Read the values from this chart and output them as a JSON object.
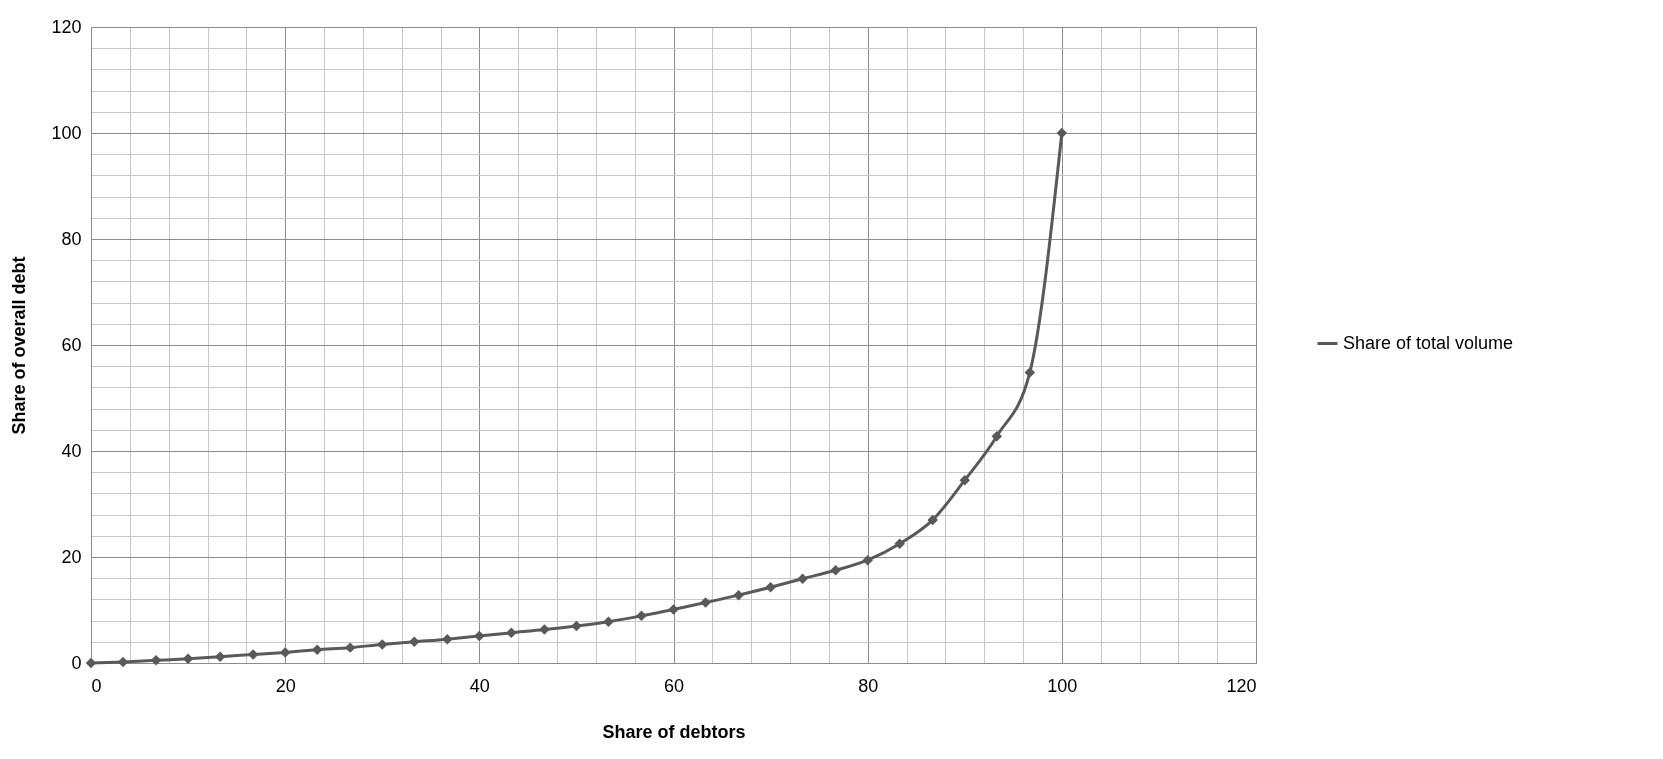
{
  "chart_data": {
    "type": "line",
    "xlabel": "Share of debtors",
    "ylabel": "Share of overall debt",
    "x": [
      0,
      3.3,
      6.7,
      10,
      13.3,
      16.7,
      20,
      23.3,
      26.7,
      30,
      33.3,
      36.7,
      40,
      43.3,
      46.7,
      50,
      53.3,
      56.7,
      60,
      63.3,
      66.7,
      70,
      73.3,
      76.7,
      80,
      83.3,
      86.7,
      90,
      93.3,
      96.7,
      100
    ],
    "series": [
      {
        "name": "Share of total volume",
        "color": "#595959",
        "values": [
          0,
          0.2,
          0.5,
          0.8,
          1.2,
          1.6,
          2.0,
          2.5,
          2.9,
          3.5,
          4.0,
          4.5,
          5.1,
          5.7,
          6.3,
          7.0,
          7.8,
          8.9,
          10.1,
          11.4,
          12.8,
          14.3,
          15.9,
          17.5,
          19.4,
          22.5,
          27,
          34.5,
          42.8,
          54.8,
          100
        ]
      }
    ],
    "xlim": [
      0,
      120
    ],
    "ylim": [
      0,
      120
    ],
    "xticks": [
      0,
      {
        "value": 4,
        "label": null
      },
      {
        "value": 8,
        "label": null
      },
      {
        "value": 12,
        "label": null
      },
      {
        "value": 16,
        "label": null
      },
      20,
      {
        "value": 24,
        "label": null
      },
      {
        "value": 28,
        "label": null
      },
      {
        "value": 32,
        "label": null
      },
      {
        "value": 36,
        "label": null
      },
      40,
      {
        "value": 44,
        "label": null
      },
      {
        "value": 48,
        "label": null
      },
      {
        "value": 52,
        "label": null
      },
      {
        "value": 56,
        "label": null
      },
      60,
      {
        "value": 64,
        "label": null
      },
      {
        "value": 68,
        "label": null
      },
      {
        "value": 72,
        "label": null
      },
      {
        "value": 76,
        "label": null
      },
      80,
      {
        "value": 84,
        "label": null
      },
      {
        "value": 88,
        "label": null
      },
      {
        "value": 92,
        "label": null
      },
      {
        "value": 96,
        "label": null
      },
      100,
      {
        "value": 104,
        "label": null
      },
      {
        "value": 108,
        "label": null
      },
      {
        "value": 112,
        "label": null
      },
      {
        "value": 116,
        "label": null
      },
      120
    ],
    "yticks": [
      0,
      {
        "value": 4,
        "label": null
      },
      {
        "value": 8,
        "label": null
      },
      {
        "value": 12,
        "label": null
      },
      {
        "value": 16,
        "label": null
      },
      20,
      {
        "value": 24,
        "label": null
      },
      {
        "value": 28,
        "label": null
      },
      {
        "value": 32,
        "label": null
      },
      {
        "value": 36,
        "label": null
      },
      40,
      {
        "value": 44,
        "label": null
      },
      {
        "value": 48,
        "label": null
      },
      {
        "value": 52,
        "label": null
      },
      {
        "value": 56,
        "label": null
      },
      60,
      {
        "value": 64,
        "label": null
      },
      {
        "value": 68,
        "label": null
      },
      {
        "value": 72,
        "label": null
      },
      {
        "value": 76,
        "label": null
      },
      80,
      {
        "value": 84,
        "label": null
      },
      {
        "value": 88,
        "label": null
      },
      {
        "value": 92,
        "label": null
      },
      {
        "value": 96,
        "label": null
      },
      100,
      {
        "value": 104,
        "label": null
      },
      {
        "value": 108,
        "label": null
      },
      {
        "value": 112,
        "label": null
      },
      {
        "value": 116,
        "label": null
      },
      120
    ],
    "grid": true,
    "legend": "right",
    "marker": "diamond",
    "line_style": "solid"
  }
}
